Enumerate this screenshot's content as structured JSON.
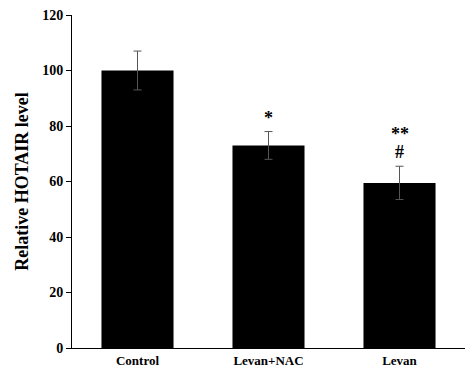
{
  "chart_data": {
    "type": "bar",
    "y_label": "Relative HOTAIR level",
    "categories": [
      "Control",
      "Levan+NAC",
      "Levan"
    ],
    "values": [
      100,
      73,
      59.5
    ],
    "errors": [
      7,
      5,
      6
    ],
    "color": "#000000",
    "ylim": [
      0,
      120
    ],
    "yticks": [
      0,
      20,
      40,
      60,
      80,
      100,
      120
    ],
    "grid": false,
    "annotations": [
      {
        "category": "Levan+NAC",
        "text": "*"
      },
      {
        "category": "Levan",
        "text": "#"
      },
      {
        "category": "Levan",
        "text": "**"
      }
    ]
  }
}
